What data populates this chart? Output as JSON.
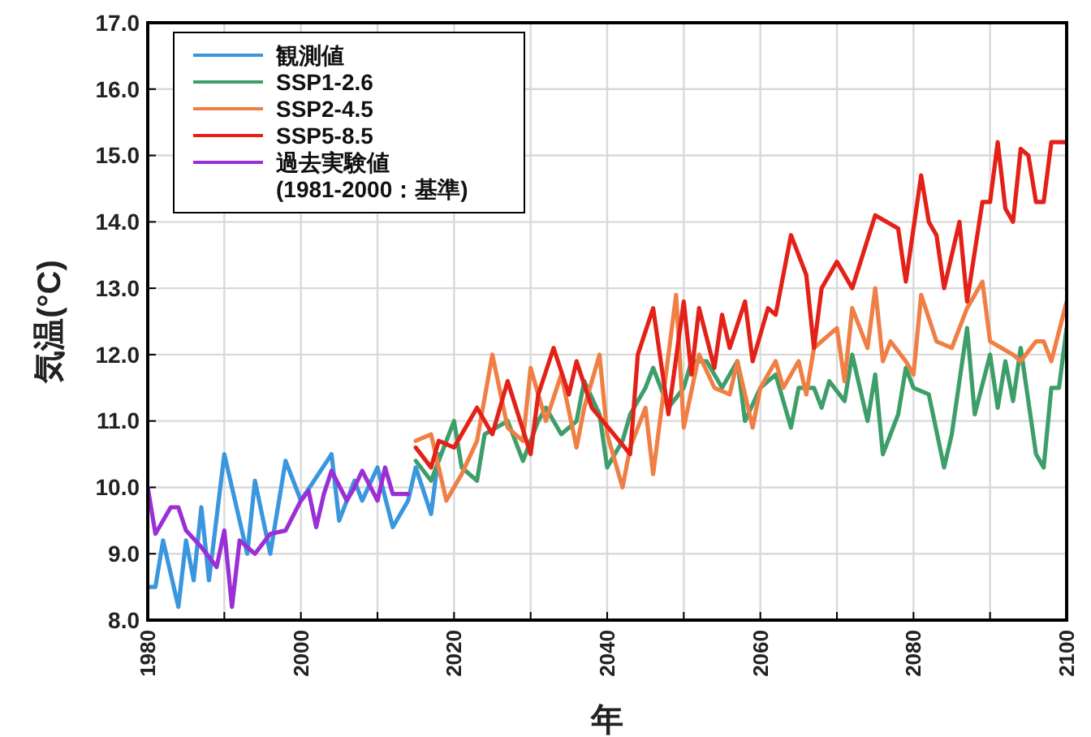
{
  "chart_data": {
    "type": "line",
    "xlabel": "年",
    "ylabel": "気温(°C)",
    "xlim": [
      1980,
      2100
    ],
    "ylim": [
      8,
      17
    ],
    "xticks": [
      1980,
      {
        "value": 1990,
        "label": null
      },
      2000,
      {
        "value": 2010,
        "label": null
      },
      2020,
      {
        "value": 2030,
        "label": null
      },
      2040,
      {
        "value": 2050,
        "label": null
      },
      2060,
      {
        "value": 2070,
        "label": null
      },
      2080,
      {
        "value": 2090,
        "label": null
      },
      2100
    ],
    "yticks": [
      {
        "value": 8,
        "label": "8.0"
      },
      {
        "value": 9,
        "label": "9.0"
      },
      {
        "value": 10,
        "label": "10.0"
      },
      {
        "value": 11,
        "label": "11.0"
      },
      {
        "value": 12,
        "label": "12.0"
      },
      {
        "value": 13,
        "label": "13.0"
      },
      {
        "value": 14,
        "label": "14.0"
      },
      {
        "value": 15,
        "label": "15.0"
      },
      {
        "value": 16,
        "label": "16.0"
      },
      {
        "value": 17,
        "label": "17.0"
      }
    ],
    "grid": true,
    "legend": "top left",
    "marker": "none",
    "line_style": "solid",
    "series": [
      {
        "name": "観測値",
        "color": "#3a96dd",
        "x": [
          1980,
          1981,
          1982,
          1984,
          1985,
          1986,
          1987,
          1988,
          1990,
          1993,
          1994,
          1996,
          1998,
          2000,
          2004,
          2005,
          2007,
          2008,
          2010,
          2012,
          2014,
          2015,
          2017,
          2018
        ],
        "values": [
          8.5,
          8.5,
          9.2,
          8.2,
          9.2,
          8.6,
          9.7,
          8.6,
          10.5,
          9.0,
          10.1,
          9.0,
          10.4,
          9.8,
          10.5,
          9.5,
          10.1,
          9.8,
          10.3,
          9.4,
          9.8,
          10.3,
          9.6,
          10.5
        ]
      },
      {
        "name": "SSP1-2.6",
        "color": "#3e9e6a",
        "x": [
          2015,
          2017,
          2019,
          2020,
          2021,
          2023,
          2024,
          2027,
          2029,
          2031,
          2032,
          2034,
          2036,
          2037,
          2039,
          2040,
          2042,
          2043,
          2045,
          2046,
          2048,
          2050,
          2051,
          2053,
          2055,
          2057,
          2058,
          2060,
          2062,
          2064,
          2065,
          2067,
          2068,
          2069,
          2071,
          2072,
          2074,
          2075,
          2076,
          2078,
          2079,
          2080,
          2082,
          2084,
          2085,
          2087,
          2088,
          2090,
          2091,
          2092,
          2093,
          2094,
          2096,
          2097,
          2098,
          2099,
          2100
        ],
        "values": [
          10.4,
          10.1,
          10.7,
          11.0,
          10.3,
          10.1,
          10.8,
          11.0,
          10.4,
          11.0,
          11.2,
          10.8,
          11.0,
          11.6,
          11.1,
          10.3,
          10.7,
          11.1,
          11.5,
          11.8,
          11.2,
          11.5,
          11.9,
          11.9,
          11.5,
          11.9,
          11.0,
          11.5,
          11.7,
          10.9,
          11.5,
          11.5,
          11.2,
          11.6,
          11.3,
          12.0,
          11.0,
          11.7,
          10.5,
          11.1,
          11.8,
          11.5,
          11.4,
          10.3,
          10.8,
          12.4,
          11.1,
          12.0,
          11.2,
          11.9,
          11.3,
          12.1,
          10.5,
          10.3,
          11.5,
          11.5,
          12.4
        ]
      },
      {
        "name": "SSP2-4.5",
        "color": "#f07f45",
        "x": [
          2015,
          2017,
          2019,
          2021,
          2023,
          2025,
          2027,
          2029,
          2030,
          2032,
          2034,
          2036,
          2037,
          2039,
          2040,
          2042,
          2043,
          2045,
          2046,
          2048,
          2049,
          2050,
          2052,
          2054,
          2056,
          2057,
          2059,
          2060,
          2062,
          2063,
          2065,
          2066,
          2067,
          2070,
          2071,
          2072,
          2074,
          2075,
          2076,
          2077,
          2079,
          2080,
          2081,
          2083,
          2085,
          2087,
          2089,
          2090,
          2093,
          2094,
          2096,
          2097,
          2098,
          2100
        ],
        "values": [
          10.7,
          10.8,
          9.8,
          10.2,
          10.7,
          12.0,
          10.9,
          10.7,
          11.8,
          11.0,
          11.7,
          10.6,
          11.2,
          12.0,
          10.8,
          10.0,
          10.6,
          11.2,
          10.2,
          12.0,
          12.9,
          10.9,
          12.0,
          11.5,
          11.4,
          11.9,
          10.9,
          11.5,
          11.9,
          11.5,
          11.9,
          11.4,
          12.1,
          12.4,
          11.6,
          12.7,
          12.1,
          13.0,
          11.9,
          12.2,
          11.9,
          11.7,
          12.9,
          12.2,
          12.1,
          12.7,
          13.1,
          12.2,
          12.0,
          11.9,
          12.2,
          12.2,
          11.9,
          12.8
        ]
      },
      {
        "name": "SSP5-8.5",
        "color": "#e32118",
        "x": [
          2015,
          2017,
          2018,
          2020,
          2023,
          2025,
          2027,
          2030,
          2031,
          2033,
          2035,
          2036,
          2038,
          2043,
          2044,
          2046,
          2048,
          2050,
          2051,
          2052,
          2054,
          2055,
          2056,
          2058,
          2059,
          2061,
          2062,
          2064,
          2066,
          2067,
          2068,
          2070,
          2072,
          2075,
          2078,
          2079,
          2081,
          2082,
          2083,
          2084,
          2086,
          2087,
          2089,
          2090,
          2091,
          2092,
          2093,
          2094,
          2095,
          2096,
          2097,
          2098,
          2099,
          2100
        ],
        "values": [
          10.6,
          10.3,
          10.7,
          10.6,
          11.2,
          10.8,
          11.6,
          10.5,
          11.4,
          12.1,
          11.4,
          11.9,
          11.2,
          10.5,
          12.0,
          12.7,
          11.1,
          12.8,
          11.7,
          12.7,
          11.8,
          12.6,
          12.1,
          12.8,
          11.9,
          12.7,
          12.6,
          13.8,
          13.2,
          12.1,
          13.0,
          13.4,
          13.0,
          14.1,
          13.9,
          13.1,
          14.7,
          14.0,
          13.8,
          13.0,
          14.0,
          12.8,
          14.3,
          14.3,
          15.2,
          14.2,
          14.0,
          15.1,
          15.0,
          14.3,
          14.3,
          15.2,
          15.2,
          15.2
        ]
      },
      {
        "name": "過去実験値\n(1981-2000：基準)",
        "color": "#9b2fd6",
        "x": [
          1980,
          1981,
          1983,
          1984,
          1985,
          1987,
          1989,
          1990,
          1991,
          1992,
          1994,
          1996,
          1998,
          2000,
          2001,
          2002,
          2003,
          2004,
          2006,
          2007,
          2008,
          2010,
          2011,
          2012,
          2013,
          2014
        ],
        "values": [
          10.0,
          9.3,
          9.7,
          9.7,
          9.35,
          9.1,
          8.8,
          9.35,
          8.2,
          9.2,
          9.0,
          9.3,
          9.35,
          9.8,
          9.95,
          9.4,
          9.9,
          10.25,
          9.8,
          10.0,
          10.25,
          9.8,
          10.3,
          9.9,
          9.9,
          9.9
        ]
      }
    ]
  }
}
